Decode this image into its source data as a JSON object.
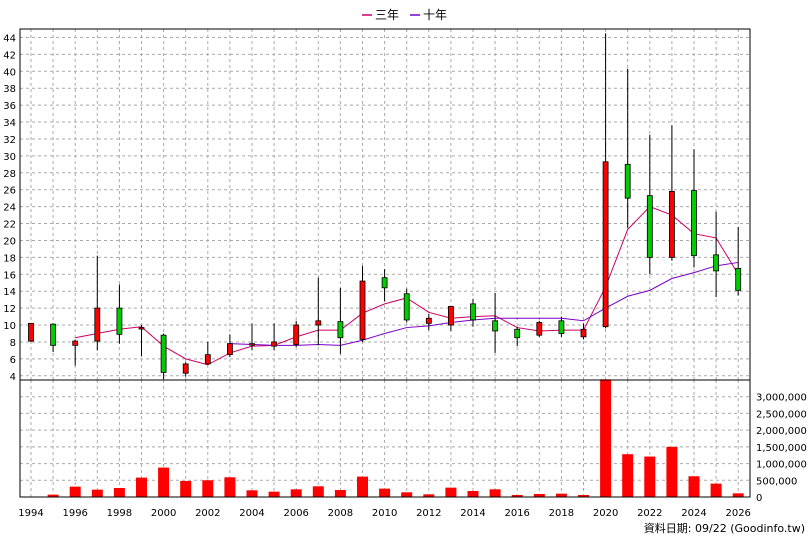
{
  "legend": {
    "items": [
      {
        "label": "三年",
        "color": "#cc0066"
      },
      {
        "label": "十年",
        "color": "#7700cc"
      }
    ]
  },
  "source_label": "資料日期: 09/22  (Goodinfo.tw)",
  "chart_data": {
    "type": "candlestick",
    "x_range": [
      1994,
      2026
    ],
    "x_ticks": [
      "1994",
      "1996",
      "1998",
      "2000",
      "2002",
      "2004",
      "2006",
      "2008",
      "2010",
      "2012",
      "2014",
      "2016",
      "2018",
      "2020",
      "2022",
      "2024",
      "2026"
    ],
    "price_axis": {
      "range": [
        3.5,
        45
      ],
      "ticks": [
        "4",
        "6",
        "8",
        "10",
        "12",
        "14",
        "16",
        "18",
        "20",
        "22",
        "24",
        "26",
        "28",
        "30",
        "32",
        "34",
        "36",
        "38",
        "40",
        "42",
        "44"
      ]
    },
    "volume_axis": {
      "range": [
        0,
        3500000
      ],
      "ticks": [
        "0",
        "500,000",
        "1,000,000",
        "1,500,000",
        "2,000,000",
        "2,500,000",
        "3,000,000"
      ]
    },
    "colors": {
      "up": "#ff0000",
      "down": "#00cc00",
      "volume": "#ff0000"
    },
    "candles": [
      {
        "year": 1994,
        "open": 8.1,
        "high": 10.2,
        "low": 8.0,
        "close": 10.2
      },
      {
        "year": 1995,
        "open": 10.1,
        "high": 10.2,
        "low": 6.8,
        "close": 7.6
      },
      {
        "year": 1996,
        "open": 7.6,
        "high": 8.3,
        "low": 5.2,
        "close": 8.1
      },
      {
        "year": 1997,
        "open": 8.1,
        "high": 18.2,
        "low": 7.0,
        "close": 12.0
      },
      {
        "year": 1998,
        "open": 12.0,
        "high": 14.8,
        "low": 7.8,
        "close": 8.9
      },
      {
        "year": 1999,
        "open": 9.6,
        "high": 10.0,
        "low": 6.3,
        "close": 9.7
      },
      {
        "year": 2000,
        "open": 8.8,
        "high": 9.0,
        "low": 3.6,
        "close": 4.4
      },
      {
        "year": 2001,
        "open": 4.3,
        "high": 5.6,
        "low": 3.9,
        "close": 5.4
      },
      {
        "year": 2002,
        "open": 5.4,
        "high": 8.0,
        "low": 5.3,
        "close": 6.5
      },
      {
        "year": 2003,
        "open": 6.5,
        "high": 8.9,
        "low": 6.2,
        "close": 7.8
      },
      {
        "year": 2004,
        "open": 7.8,
        "high": 10.2,
        "low": 7.0,
        "close": 7.8
      },
      {
        "year": 2005,
        "open": 7.5,
        "high": 10.2,
        "low": 7.0,
        "close": 8.0
      },
      {
        "year": 2006,
        "open": 7.7,
        "high": 10.5,
        "low": 7.4,
        "close": 10.0
      },
      {
        "year": 2007,
        "open": 10.0,
        "high": 15.6,
        "low": 7.6,
        "close": 10.5
      },
      {
        "year": 2008,
        "open": 10.4,
        "high": 14.4,
        "low": 6.6,
        "close": 8.5
      },
      {
        "year": 2009,
        "open": 8.3,
        "high": 17.0,
        "low": 8.0,
        "close": 15.2
      },
      {
        "year": 2010,
        "open": 15.6,
        "high": 16.6,
        "low": 12.8,
        "close": 14.4
      },
      {
        "year": 2011,
        "open": 13.7,
        "high": 14.3,
        "low": 10.3,
        "close": 10.6
      },
      {
        "year": 2012,
        "open": 10.2,
        "high": 11.3,
        "low": 9.4,
        "close": 10.8
      },
      {
        "year": 2013,
        "open": 10.0,
        "high": 12.2,
        "low": 9.3,
        "close": 12.2
      },
      {
        "year": 2014,
        "open": 12.5,
        "high": 13.1,
        "low": 9.8,
        "close": 10.6
      },
      {
        "year": 2015,
        "open": 10.5,
        "high": 13.8,
        "low": 6.7,
        "close": 9.3
      },
      {
        "year": 2016,
        "open": 9.5,
        "high": 9.8,
        "low": 7.5,
        "close": 8.5
      },
      {
        "year": 2017,
        "open": 8.8,
        "high": 10.5,
        "low": 8.6,
        "close": 10.3
      },
      {
        "year": 2018,
        "open": 10.5,
        "high": 11.0,
        "low": 8.6,
        "close": 9.0
      },
      {
        "year": 2019,
        "open": 8.6,
        "high": 10.2,
        "low": 8.3,
        "close": 9.5
      },
      {
        "year": 2020,
        "open": 9.8,
        "high": 44.5,
        "low": 9.6,
        "close": 29.3
      },
      {
        "year": 2021,
        "open": 29.0,
        "high": 40.3,
        "low": 21.5,
        "close": 25.0
      },
      {
        "year": 2022,
        "open": 25.3,
        "high": 32.5,
        "low": 16.0,
        "close": 18.0
      },
      {
        "year": 2023,
        "open": 18.0,
        "high": 33.6,
        "low": 17.6,
        "close": 25.8
      },
      {
        "year": 2024,
        "open": 25.9,
        "high": 30.8,
        "low": 16.8,
        "close": 18.2
      },
      {
        "year": 2025,
        "open": 18.3,
        "high": 23.4,
        "low": 13.3,
        "close": 16.4
      },
      {
        "year": 2026,
        "open": 16.7,
        "high": 21.6,
        "low": 13.5,
        "close": 14.1
      }
    ],
    "volume": [
      {
        "year": 1994,
        "value": 10000
      },
      {
        "year": 1995,
        "value": 70000
      },
      {
        "year": 1996,
        "value": 310000
      },
      {
        "year": 1997,
        "value": 220000
      },
      {
        "year": 1998,
        "value": 270000
      },
      {
        "year": 1999,
        "value": 580000
      },
      {
        "year": 2000,
        "value": 880000
      },
      {
        "year": 2001,
        "value": 480000
      },
      {
        "year": 2002,
        "value": 500000
      },
      {
        "year": 2003,
        "value": 590000
      },
      {
        "year": 2004,
        "value": 200000
      },
      {
        "year": 2005,
        "value": 160000
      },
      {
        "year": 2006,
        "value": 230000
      },
      {
        "year": 2007,
        "value": 320000
      },
      {
        "year": 2008,
        "value": 210000
      },
      {
        "year": 2009,
        "value": 610000
      },
      {
        "year": 2010,
        "value": 250000
      },
      {
        "year": 2011,
        "value": 140000
      },
      {
        "year": 2012,
        "value": 80000
      },
      {
        "year": 2013,
        "value": 280000
      },
      {
        "year": 2014,
        "value": 180000
      },
      {
        "year": 2015,
        "value": 230000
      },
      {
        "year": 2016,
        "value": 60000
      },
      {
        "year": 2017,
        "value": 90000
      },
      {
        "year": 2018,
        "value": 100000
      },
      {
        "year": 2019,
        "value": 60000
      },
      {
        "year": 2020,
        "value": 3520000
      },
      {
        "year": 2021,
        "value": 1280000
      },
      {
        "year": 2022,
        "value": 1210000
      },
      {
        "year": 2023,
        "value": 1500000
      },
      {
        "year": 2024,
        "value": 620000
      },
      {
        "year": 2025,
        "value": 400000
      },
      {
        "year": 2026,
        "value": 110000
      }
    ],
    "series": [
      {
        "name": "三年",
        "color": "#cc0066",
        "points": [
          [
            1996,
            8.5
          ],
          [
            1997,
            9.0
          ],
          [
            1998,
            9.5
          ],
          [
            1999,
            9.8
          ],
          [
            2000,
            7.5
          ],
          [
            2001,
            6.0
          ],
          [
            2002,
            5.3
          ],
          [
            2003,
            6.7
          ],
          [
            2004,
            7.5
          ],
          [
            2005,
            7.6
          ],
          [
            2006,
            8.6
          ],
          [
            2007,
            9.4
          ],
          [
            2008,
            9.4
          ],
          [
            2009,
            11.4
          ],
          [
            2010,
            12.5
          ],
          [
            2011,
            13.2
          ],
          [
            2012,
            11.5
          ],
          [
            2013,
            10.8
          ],
          [
            2014,
            11.0
          ],
          [
            2015,
            11.1
          ],
          [
            2016,
            9.7
          ],
          [
            2017,
            9.3
          ],
          [
            2018,
            9.4
          ],
          [
            2019,
            9.4
          ],
          [
            2020,
            14.5
          ],
          [
            2021,
            21.3
          ],
          [
            2022,
            24.0
          ],
          [
            2023,
            23.0
          ],
          [
            2024,
            20.8
          ],
          [
            2025,
            20.3
          ],
          [
            2026,
            16.0
          ]
        ]
      },
      {
        "name": "十年",
        "color": "#7700cc",
        "points": [
          [
            2003,
            7.8
          ],
          [
            2004,
            7.7
          ],
          [
            2005,
            7.6
          ],
          [
            2006,
            7.6
          ],
          [
            2007,
            7.7
          ],
          [
            2008,
            7.6
          ],
          [
            2009,
            8.2
          ],
          [
            2010,
            9.0
          ],
          [
            2011,
            9.7
          ],
          [
            2012,
            9.9
          ],
          [
            2013,
            10.3
          ],
          [
            2014,
            10.6
          ],
          [
            2015,
            10.8
          ],
          [
            2016,
            10.8
          ],
          [
            2017,
            10.8
          ],
          [
            2018,
            10.8
          ],
          [
            2019,
            10.5
          ],
          [
            2020,
            12.0
          ],
          [
            2021,
            13.4
          ],
          [
            2022,
            14.1
          ],
          [
            2023,
            15.5
          ],
          [
            2024,
            16.2
          ],
          [
            2025,
            17.0
          ],
          [
            2026,
            17.4
          ]
        ]
      }
    ]
  }
}
